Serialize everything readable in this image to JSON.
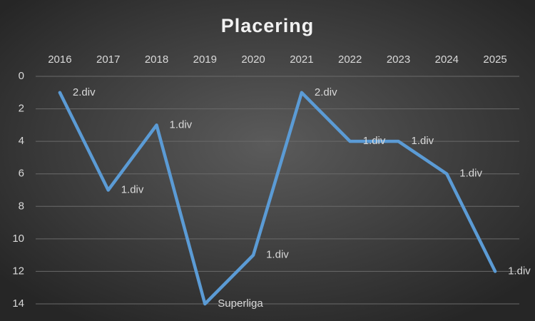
{
  "chart_data": {
    "type": "line",
    "title": "Placering",
    "categories": [
      "2016",
      "2017",
      "2018",
      "2019",
      "2020",
      "2021",
      "2022",
      "2023",
      "2024",
      "2025"
    ],
    "values": [
      1,
      7,
      3,
      14,
      11,
      1,
      4,
      4,
      6,
      12
    ],
    "point_labels": [
      "2.div",
      "1.div",
      "1.div",
      "Superliga",
      "1.div",
      "2.div",
      "1.div",
      "1.div",
      "1.div",
      "1.div"
    ],
    "color": "#5b9bd5",
    "ylim": [
      0,
      14
    ],
    "yticks": [
      0,
      2,
      4,
      6,
      8,
      10,
      12,
      14
    ],
    "y_reversed": true,
    "grid": true
  }
}
